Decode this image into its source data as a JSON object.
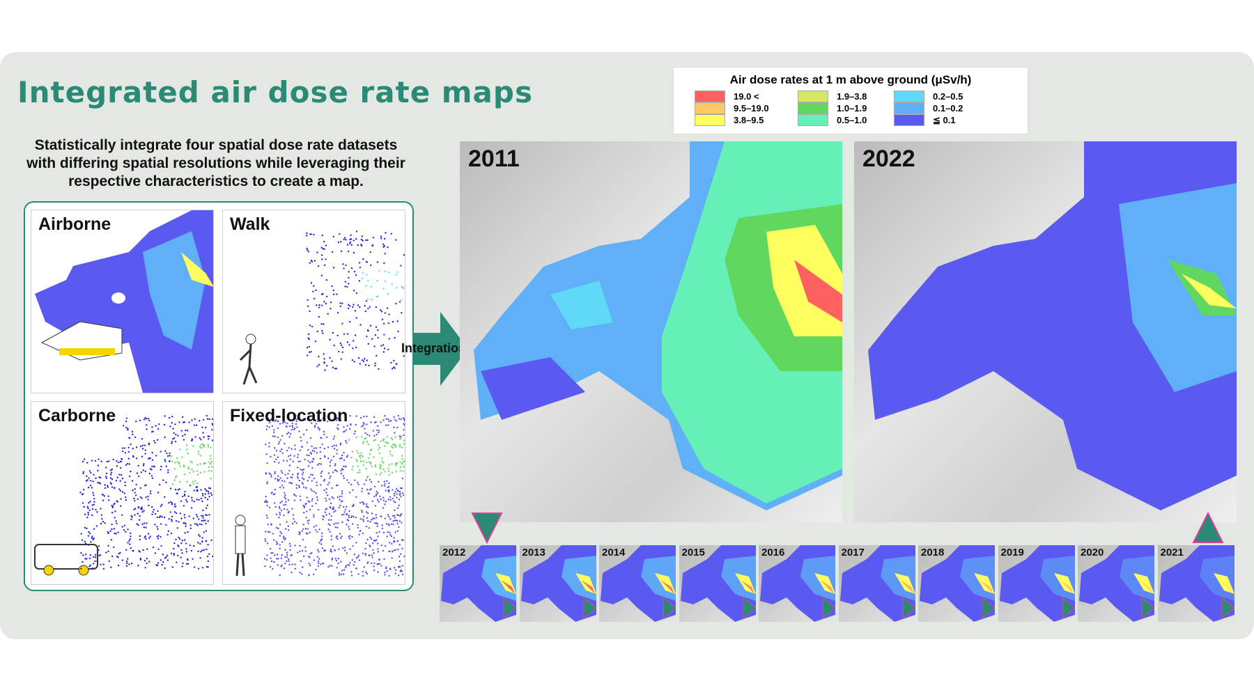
{
  "title": "Integrated air dose rate maps",
  "subtitle_lines": [
    "Statistically integrate four spatial dose rate datasets",
    "with differing spatial resolutions while leveraging their",
    "respective characteristics to create a map."
  ],
  "datasets": [
    {
      "label": "Airborne",
      "icon": "helicopter-icon"
    },
    {
      "label": "Walk",
      "icon": "walking-person-icon"
    },
    {
      "label": "Carborne",
      "icon": "van-icon"
    },
    {
      "label": "Fixed-location",
      "icon": "surveyor-icon"
    }
  ],
  "integration_label": "Integration",
  "maps": [
    {
      "year": "2011"
    },
    {
      "year": "2022"
    }
  ],
  "legend": {
    "title": "Air dose rates at 1 m above ground (μSv/h)",
    "items": [
      {
        "label": "19.0 <",
        "color": "#ff6060"
      },
      {
        "label": "9.5–19.0",
        "color": "#ffc866"
      },
      {
        "label": "3.8–9.5",
        "color": "#ffff60"
      },
      {
        "label": "1.9–3.8",
        "color": "#d4e864"
      },
      {
        "label": "1.0–1.9",
        "color": "#60d860"
      },
      {
        "label": "0.5–1.0",
        "color": "#66f0b8"
      },
      {
        "label": "0.2–0.5",
        "color": "#60d8f8"
      },
      {
        "label": "0.1–0.2",
        "color": "#60b0f8"
      },
      {
        "label": "≦ 0.1",
        "color": "#5a5af0"
      }
    ]
  },
  "thumbnails": [
    "2012",
    "2013",
    "2014",
    "2015",
    "2016",
    "2017",
    "2018",
    "2019",
    "2020",
    "2021"
  ],
  "colors": {
    "accent": "#2a8a76",
    "background": "#e3e9e2",
    "triangle_border": "#e0409a"
  }
}
